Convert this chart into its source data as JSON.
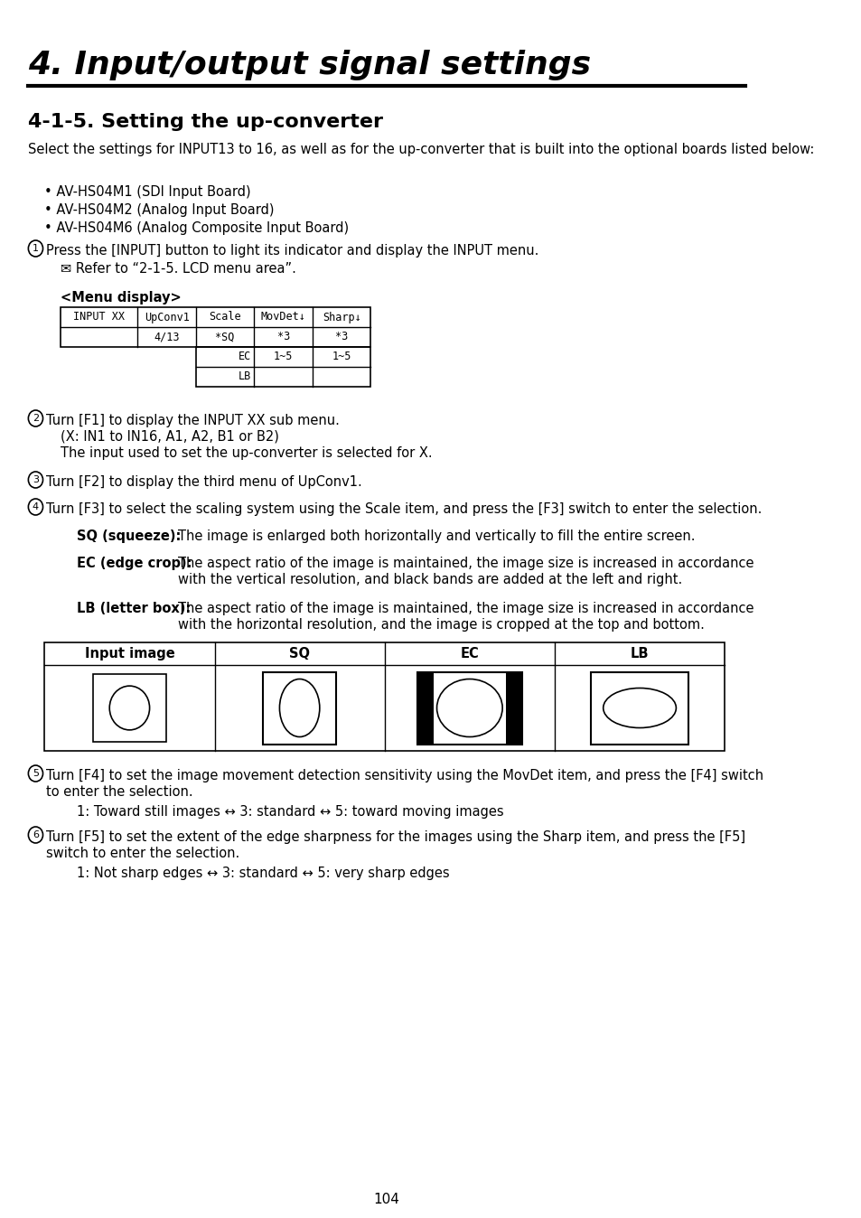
{
  "title": "4. Input/output signal settings",
  "section": "4-1-5. Setting the up-converter",
  "intro": "Select the settings for INPUT13 to 16, as well as for the up-converter that is built into the optional boards listed below:",
  "bullets": [
    "AV-HS04M1 (SDI Input Board)",
    "AV-HS04M2 (Analog Input Board)",
    "AV-HS04M6 (Analog Composite Input Board)"
  ],
  "step1": "Press the [INPUT] button to light its indicator and display the INPUT menu.",
  "step1_note": "✉ Refer to “2-1-5. LCD menu area”.",
  "menu_display": "<Menu display>",
  "table_headers": [
    "INPUT XX",
    "UpConv1",
    "Scale",
    "MovDet↓",
    "Sharp↓"
  ],
  "table_row1": [
    "",
    "4/13",
    "*SQ",
    "*3",
    "*3"
  ],
  "table_row2_label": [
    "",
    "",
    "EC\nLB",
    "1~5",
    "1~5"
  ],
  "step2": "Turn [F1] to display the INPUT XX sub menu.\n    (X: IN1 to IN16, A1, A2, B1 or B2)\n    The input used to set the up-converter is selected for X.",
  "step3": "Turn [F2] to display the third menu of UpConv1.",
  "step4": "Turn [F3] to select the scaling system using the Scale item, and press the [F3] switch to enter the selection.",
  "sq_label": "SQ (squeeze):",
  "sq_text": "The image is enlarged both horizontally and vertically to fill the entire screen.",
  "ec_label": "EC (edge crop):",
  "ec_text": "The aspect ratio of the image is maintained, the image size is increased in accordance\n        with the vertical resolution, and black bands are added at the left and right.",
  "lb_label": "LB (letter box):",
  "lb_text": "The aspect ratio of the image is maintained, the image size is increased in accordance\n        with the horizontal resolution, and the image is cropped at the top and bottom.",
  "img_headers": [
    "Input image",
    "SQ",
    "EC",
    "LB"
  ],
  "step5": "Turn [F4] to set the image movement detection sensitivity using the MovDet item, and press the [F4] switch to enter the selection.",
  "step5_sub": "1: Toward still images ↔ 3: standard ↔ 5: toward moving images",
  "step6": "Turn [F5] to set the extent of the edge sharpness for the images using the Sharp item, and press the [F5] switch to enter the selection.",
  "step6_sub": "1: Not sharp edges ↔ 3: standard ↔ 5: very sharp edges",
  "page_num": "104",
  "bg_color": "#ffffff",
  "text_color": "#000000"
}
